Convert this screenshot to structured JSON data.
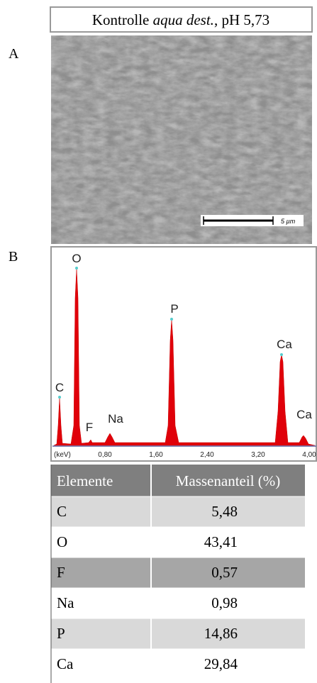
{
  "header": {
    "title": {
      "before": "Kontrolle ",
      "italic": "aqua dest.",
      "after": ", pH 5,73"
    }
  },
  "panel_a": {
    "label": "A",
    "scale_bar": "5 µm"
  },
  "panel_b": {
    "label": "B",
    "peaks": [
      "C",
      "O",
      "F",
      "Na",
      "P",
      "Ca",
      "Ca"
    ],
    "axis_unit": "(keV)",
    "axis_ticks": [
      "0,80",
      "1,60",
      "2,40",
      "3,20",
      "4,00"
    ]
  },
  "table": {
    "header": [
      "Elemente",
      "Massenanteil (%)"
    ],
    "rows": [
      [
        "C",
        "5,48"
      ],
      [
        "O",
        "43,41"
      ],
      [
        "F",
        "0,57"
      ],
      [
        "Na",
        "0,98"
      ],
      [
        "P",
        "14,86"
      ],
      [
        "Ca",
        "29,84"
      ]
    ]
  }
}
